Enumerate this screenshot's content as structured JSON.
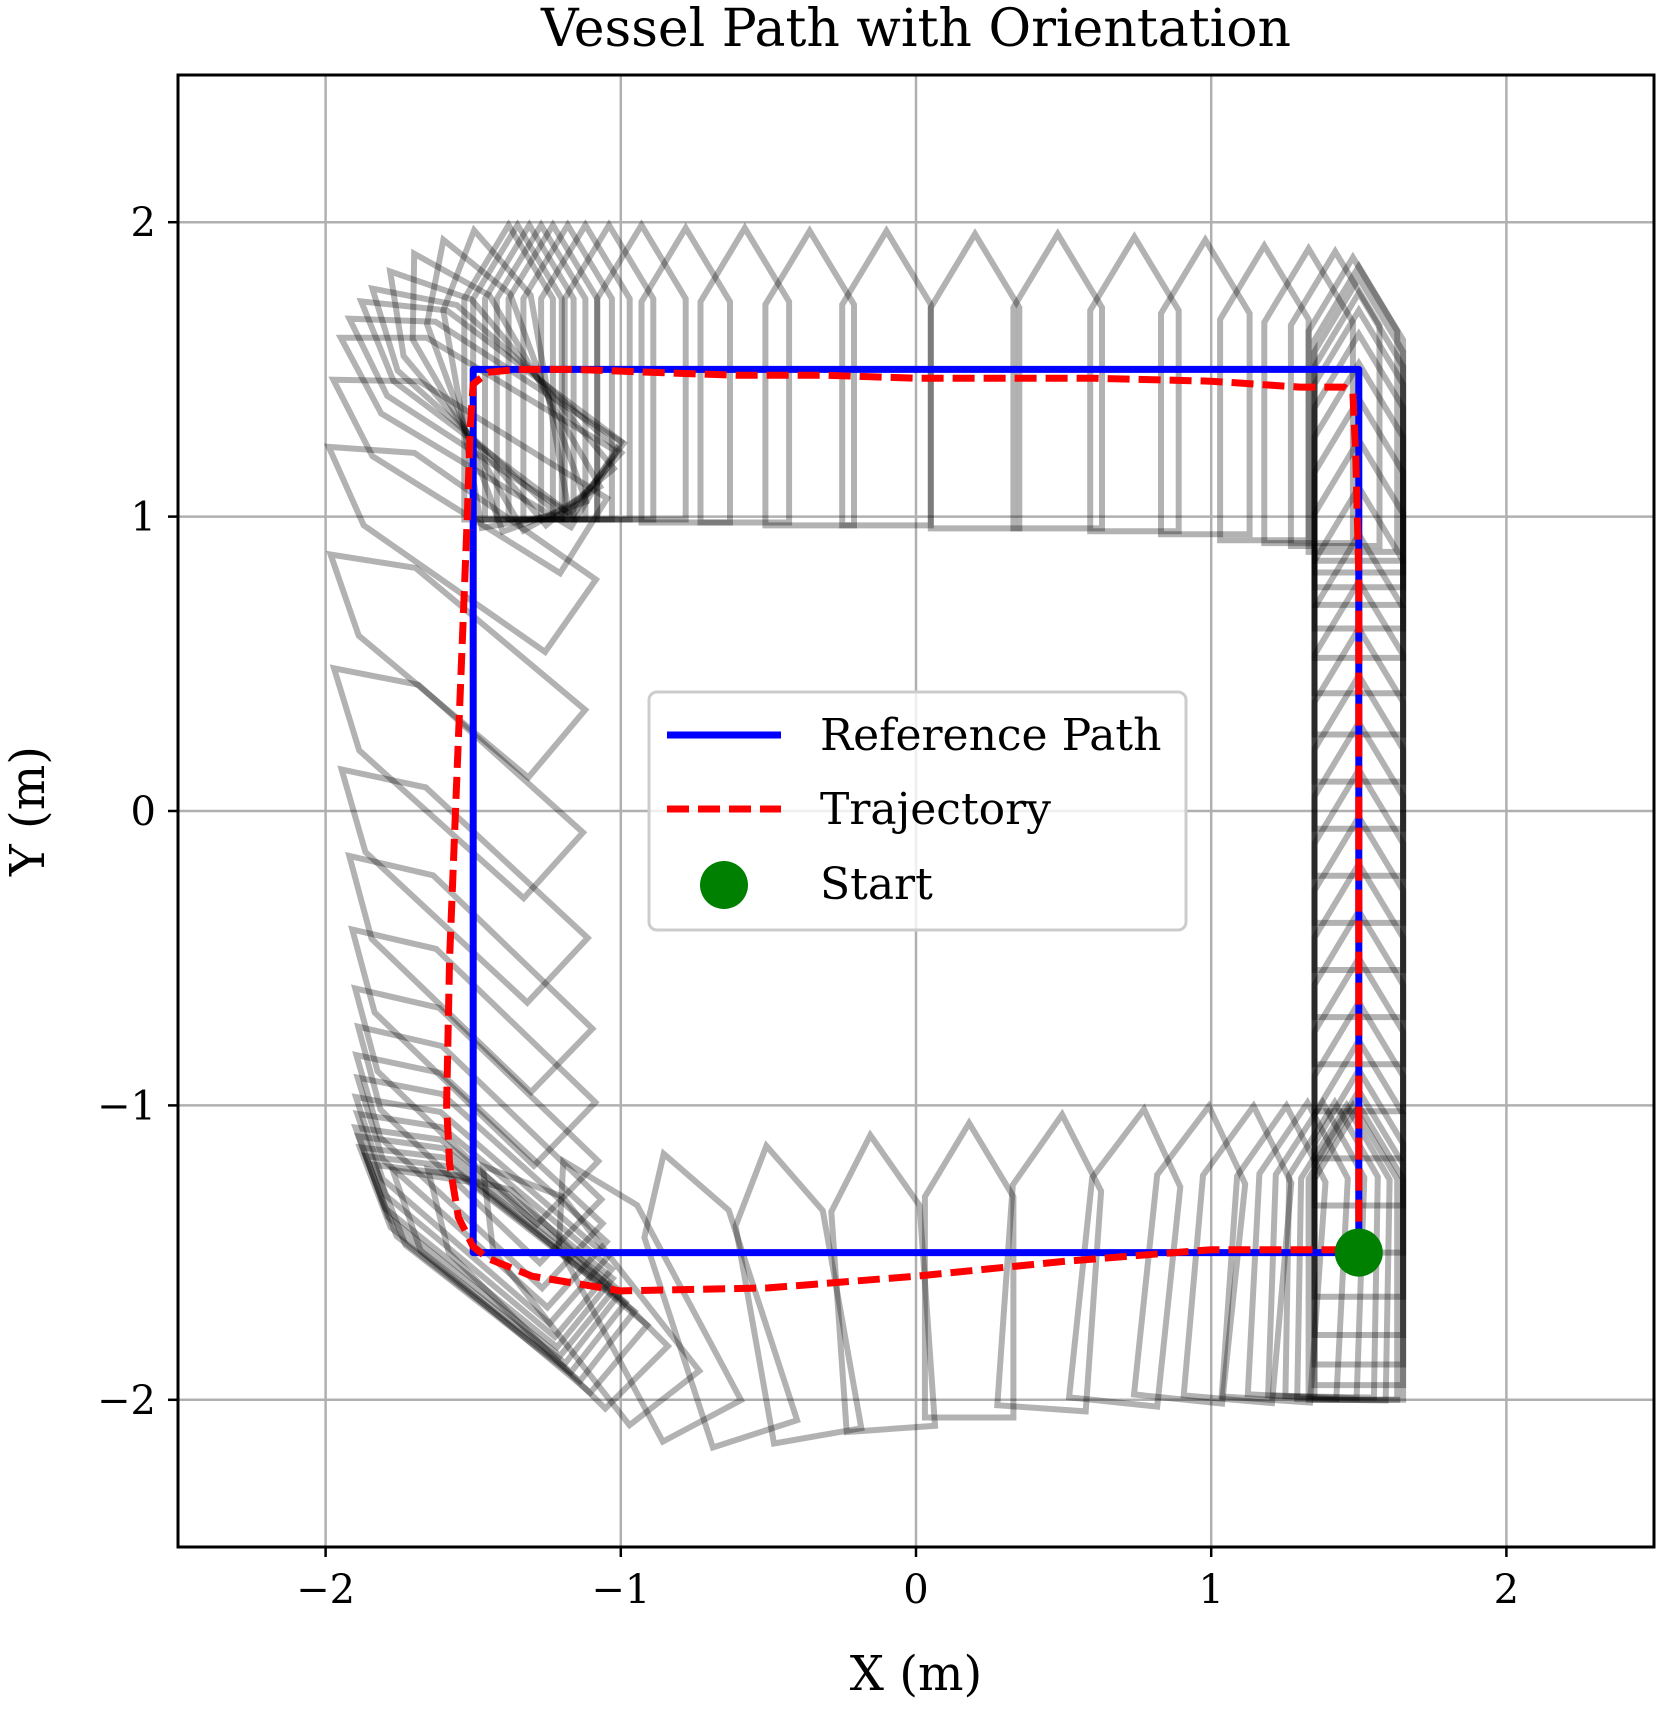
{
  "chart_data": {
    "type": "line",
    "title": "Vessel Path with Orientation",
    "xlabel": "X (m)",
    "ylabel": "Y (m)",
    "xlim": [
      -2.5,
      2.5
    ],
    "ylim": [
      -2.5,
      2.5
    ],
    "xticks": [
      -2,
      -1,
      0,
      1,
      2
    ],
    "yticks": [
      -2,
      -1,
      0,
      1,
      2
    ],
    "xtick_labels": [
      "−2",
      "−1",
      "0",
      "1",
      "2"
    ],
    "ytick_labels": [
      "−2",
      "−1",
      "0",
      "1",
      "2"
    ],
    "grid": true,
    "legend_position": "center",
    "series": [
      {
        "name": "Reference Path",
        "style": "solid",
        "color": "#0000ff",
        "x": [
          1.5,
          -1.5,
          -1.5,
          1.5,
          1.5
        ],
        "y": [
          -1.5,
          -1.5,
          1.5,
          1.5,
          -1.5
        ]
      },
      {
        "name": "Trajectory",
        "style": "dashed",
        "color": "#ff0000",
        "x": [
          1.5,
          1.5,
          1.5,
          1.5,
          1.5,
          1.5,
          1.49,
          1.48,
          1.45,
          1.3,
          1.0,
          0.6,
          0.3,
          0.0,
          -0.3,
          -0.6,
          -0.9,
          -1.15,
          -1.35,
          -1.45,
          -1.5,
          -1.51,
          -1.52,
          -1.54,
          -1.56,
          -1.58,
          -1.59,
          -1.58,
          -1.55,
          -1.5,
          -1.45,
          -1.3,
          -1.0,
          -0.5,
          0.0,
          0.5,
          1.0,
          1.3,
          1.45,
          1.49,
          1.5
        ],
        "y": [
          -1.5,
          -1.3,
          -0.9,
          -0.3,
          0.3,
          0.8,
          1.2,
          1.42,
          1.44,
          1.44,
          1.46,
          1.47,
          1.47,
          1.47,
          1.48,
          1.48,
          1.49,
          1.5,
          1.5,
          1.49,
          1.45,
          1.3,
          1.0,
          0.5,
          0.0,
          -0.5,
          -1.0,
          -1.2,
          -1.38,
          -1.48,
          -1.52,
          -1.58,
          -1.63,
          -1.62,
          -1.58,
          -1.53,
          -1.49,
          -1.49,
          -1.49,
          -1.49,
          -1.5
        ]
      },
      {
        "name": "Start",
        "style": "marker",
        "color": "#008000",
        "x": [
          1.5
        ],
        "y": [
          -1.5
        ]
      }
    ],
    "vessel_outlines": {
      "color": "#000000",
      "opacity": 0.3,
      "hull_length": 1.0,
      "hull_width": 0.3,
      "poses": [
        {
          "x": 1.5,
          "y": -1.5,
          "heading_deg": 90
        },
        {
          "x": 1.5,
          "y": -1.45,
          "heading_deg": 90
        },
        {
          "x": 1.5,
          "y": -1.38,
          "heading_deg": 90
        },
        {
          "x": 1.5,
          "y": -1.28,
          "heading_deg": 90
        },
        {
          "x": 1.5,
          "y": -1.15,
          "heading_deg": 90
        },
        {
          "x": 1.5,
          "y": -1.0,
          "heading_deg": 90
        },
        {
          "x": 1.5,
          "y": -0.84,
          "heading_deg": 90
        },
        {
          "x": 1.5,
          "y": -0.68,
          "heading_deg": 90
        },
        {
          "x": 1.5,
          "y": -0.52,
          "heading_deg": 90
        },
        {
          "x": 1.5,
          "y": -0.36,
          "heading_deg": 90
        },
        {
          "x": 1.5,
          "y": -0.2,
          "heading_deg": 90
        },
        {
          "x": 1.5,
          "y": -0.04,
          "heading_deg": 90
        },
        {
          "x": 1.5,
          "y": 0.12,
          "heading_deg": 90
        },
        {
          "x": 1.5,
          "y": 0.28,
          "heading_deg": 90
        },
        {
          "x": 1.5,
          "y": 0.44,
          "heading_deg": 90
        },
        {
          "x": 1.5,
          "y": 0.6,
          "heading_deg": 90
        },
        {
          "x": 1.5,
          "y": 0.76,
          "heading_deg": 90
        },
        {
          "x": 1.5,
          "y": 0.9,
          "heading_deg": 90
        },
        {
          "x": 1.5,
          "y": 1.02,
          "heading_deg": 90
        },
        {
          "x": 1.5,
          "y": 1.12,
          "heading_deg": 90
        },
        {
          "x": 1.5,
          "y": 1.2,
          "heading_deg": 90
        },
        {
          "x": 1.5,
          "y": 1.26,
          "heading_deg": 90
        },
        {
          "x": 1.5,
          "y": 1.31,
          "heading_deg": 90
        },
        {
          "x": 1.5,
          "y": 1.35,
          "heading_deg": 90
        },
        {
          "x": 1.48,
          "y": 1.38,
          "heading_deg": 90
        },
        {
          "x": 1.42,
          "y": 1.4,
          "heading_deg": 90
        },
        {
          "x": 1.33,
          "y": 1.41,
          "heading_deg": 90
        },
        {
          "x": 1.18,
          "y": 1.42,
          "heading_deg": 90
        },
        {
          "x": 0.98,
          "y": 1.44,
          "heading_deg": 90
        },
        {
          "x": 0.74,
          "y": 1.45,
          "heading_deg": 90
        },
        {
          "x": 0.48,
          "y": 1.46,
          "heading_deg": 90
        },
        {
          "x": 0.2,
          "y": 1.46,
          "heading_deg": 90
        },
        {
          "x": -0.1,
          "y": 1.47,
          "heading_deg": 90
        },
        {
          "x": -0.36,
          "y": 1.47,
          "heading_deg": 90
        },
        {
          "x": -0.58,
          "y": 1.48,
          "heading_deg": 90
        },
        {
          "x": -0.78,
          "y": 1.48,
          "heading_deg": 90
        },
        {
          "x": -0.93,
          "y": 1.49,
          "heading_deg": 90
        },
        {
          "x": -1.04,
          "y": 1.49,
          "heading_deg": 90
        },
        {
          "x": -1.12,
          "y": 1.49,
          "heading_deg": 90
        },
        {
          "x": -1.18,
          "y": 1.49,
          "heading_deg": 90
        },
        {
          "x": -1.23,
          "y": 1.49,
          "heading_deg": 90
        },
        {
          "x": -1.27,
          "y": 1.49,
          "heading_deg": 90
        },
        {
          "x": -1.31,
          "y": 1.49,
          "heading_deg": 90
        },
        {
          "x": -1.35,
          "y": 1.49,
          "heading_deg": 90
        },
        {
          "x": -1.38,
          "y": 1.49,
          "heading_deg": 90
        },
        {
          "x": -1.41,
          "y": 1.48,
          "heading_deg": 100
        },
        {
          "x": -1.43,
          "y": 1.47,
          "heading_deg": 110
        },
        {
          "x": -1.45,
          "y": 1.46,
          "heading_deg": 120
        },
        {
          "x": -1.46,
          "y": 1.45,
          "heading_deg": 130
        },
        {
          "x": -1.47,
          "y": 1.44,
          "heading_deg": 138
        },
        {
          "x": -1.48,
          "y": 1.43,
          "heading_deg": 143
        },
        {
          "x": -1.5,
          "y": 1.4,
          "heading_deg": 147
        },
        {
          "x": -1.52,
          "y": 1.35,
          "heading_deg": 149
        },
        {
          "x": -1.55,
          "y": 1.2,
          "heading_deg": 148
        },
        {
          "x": -1.58,
          "y": 0.95,
          "heading_deg": 145
        },
        {
          "x": -1.6,
          "y": 0.55,
          "heading_deg": 140
        },
        {
          "x": -1.6,
          "y": 0.15,
          "heading_deg": 138
        },
        {
          "x": -1.58,
          "y": -0.2,
          "heading_deg": 137
        },
        {
          "x": -1.56,
          "y": -0.5,
          "heading_deg": 136
        },
        {
          "x": -1.55,
          "y": -0.75,
          "heading_deg": 136
        },
        {
          "x": -1.54,
          "y": -0.95,
          "heading_deg": 136
        },
        {
          "x": -1.53,
          "y": -1.08,
          "heading_deg": 136
        },
        {
          "x": -1.53,
          "y": -1.17,
          "heading_deg": 137
        },
        {
          "x": -1.52,
          "y": -1.24,
          "heading_deg": 138
        },
        {
          "x": -1.52,
          "y": -1.3,
          "heading_deg": 139
        },
        {
          "x": -1.51,
          "y": -1.35,
          "heading_deg": 140
        },
        {
          "x": -1.51,
          "y": -1.39,
          "heading_deg": 141
        },
        {
          "x": -1.5,
          "y": -1.42,
          "heading_deg": 141
        },
        {
          "x": -1.49,
          "y": -1.45,
          "heading_deg": 142
        },
        {
          "x": -1.47,
          "y": -1.48,
          "heading_deg": 142
        },
        {
          "x": -1.44,
          "y": -1.51,
          "heading_deg": 142
        },
        {
          "x": -1.39,
          "y": -1.54,
          "heading_deg": 140
        },
        {
          "x": -1.3,
          "y": -1.57,
          "heading_deg": 135
        },
        {
          "x": -1.16,
          "y": -1.6,
          "heading_deg": 128
        },
        {
          "x": -0.96,
          "y": -1.63,
          "heading_deg": 118
        },
        {
          "x": -0.7,
          "y": -1.64,
          "heading_deg": 108
        },
        {
          "x": -0.42,
          "y": -1.63,
          "heading_deg": 100
        },
        {
          "x": -0.12,
          "y": -1.6,
          "heading_deg": 94
        },
        {
          "x": 0.18,
          "y": -1.56,
          "heading_deg": 90
        },
        {
          "x": 0.46,
          "y": -1.53,
          "heading_deg": 86
        },
        {
          "x": 0.72,
          "y": -1.51,
          "heading_deg": 84
        },
        {
          "x": 0.94,
          "y": -1.5,
          "heading_deg": 84
        },
        {
          "x": 1.1,
          "y": -1.5,
          "heading_deg": 85
        },
        {
          "x": 1.22,
          "y": -1.5,
          "heading_deg": 86
        },
        {
          "x": 1.3,
          "y": -1.49,
          "heading_deg": 87
        },
        {
          "x": 1.36,
          "y": -1.49,
          "heading_deg": 88
        },
        {
          "x": 1.41,
          "y": -1.49,
          "heading_deg": 89
        },
        {
          "x": 1.45,
          "y": -1.5,
          "heading_deg": 89
        },
        {
          "x": 1.48,
          "y": -1.5,
          "heading_deg": 90
        }
      ]
    }
  }
}
